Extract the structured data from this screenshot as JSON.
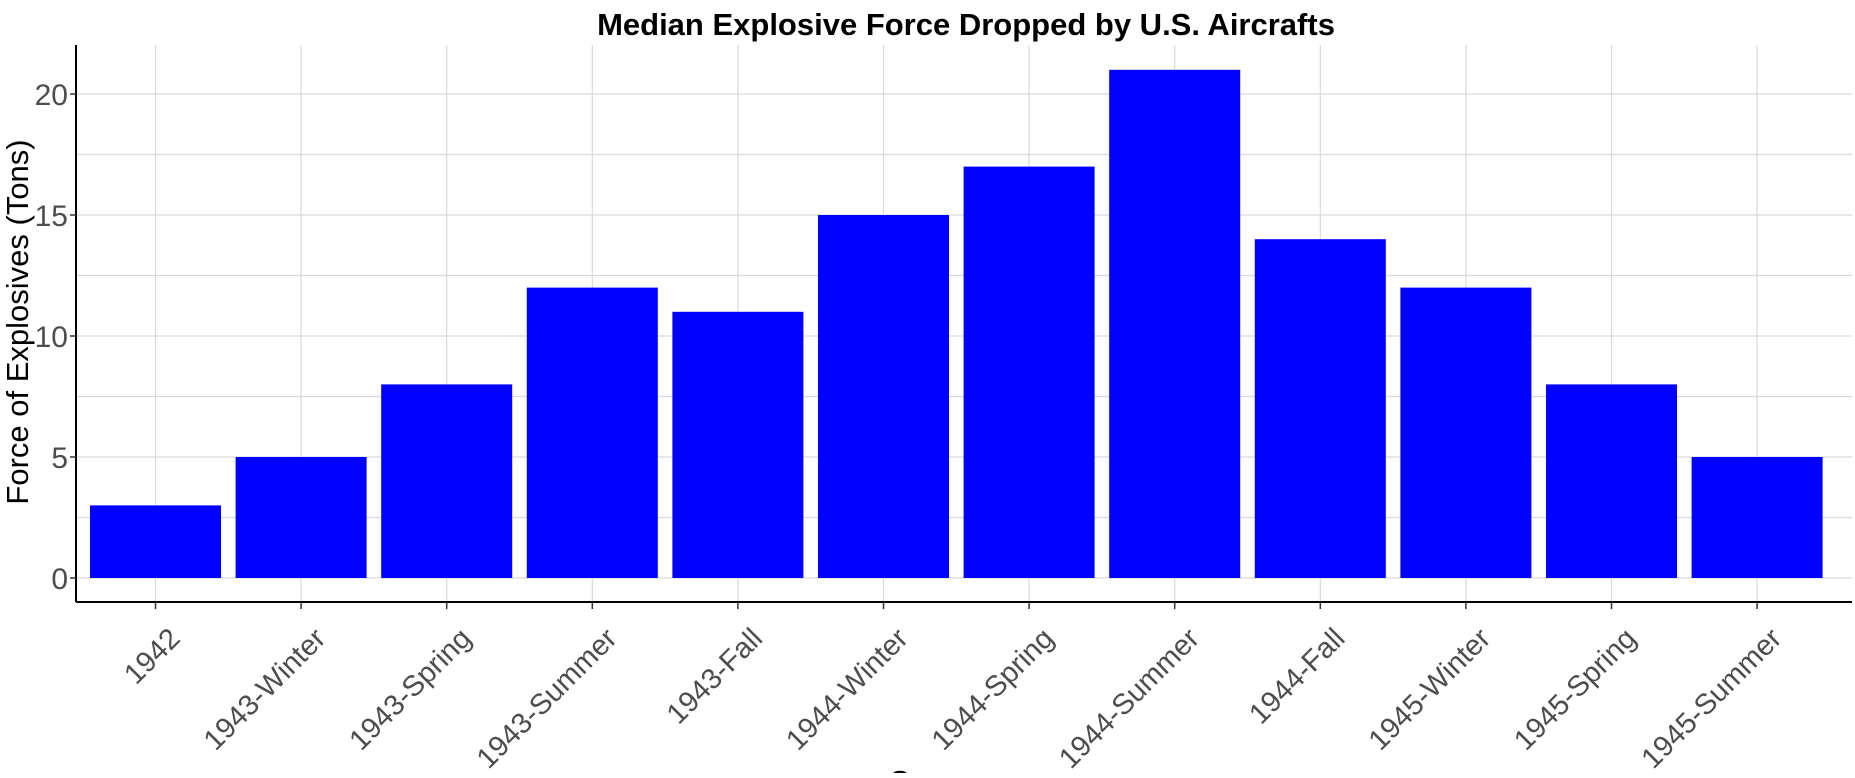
{
  "chart_data": {
    "type": "bar",
    "title": "Median Explosive Force Dropped by U.S. Aircrafts",
    "xlabel": "Season",
    "ylabel": "Force of Explosives (Tons)",
    "categories": [
      "1942",
      "1943-Winter",
      "1943-Spring",
      "1943-Summer",
      "1943-Fall",
      "1944-Winter",
      "1944-Spring",
      "1944-Summer",
      "1944-Fall",
      "1945-Winter",
      "1945-Spring",
      "1945-Summer"
    ],
    "values": [
      3,
      5,
      8,
      12,
      11,
      15,
      17,
      21,
      14,
      12,
      8,
      5
    ],
    "ylim": [
      0,
      22
    ],
    "yticks": [
      0,
      5,
      10,
      15,
      20
    ],
    "grid": true,
    "legend": "none",
    "bar_color": "#0000ff"
  }
}
